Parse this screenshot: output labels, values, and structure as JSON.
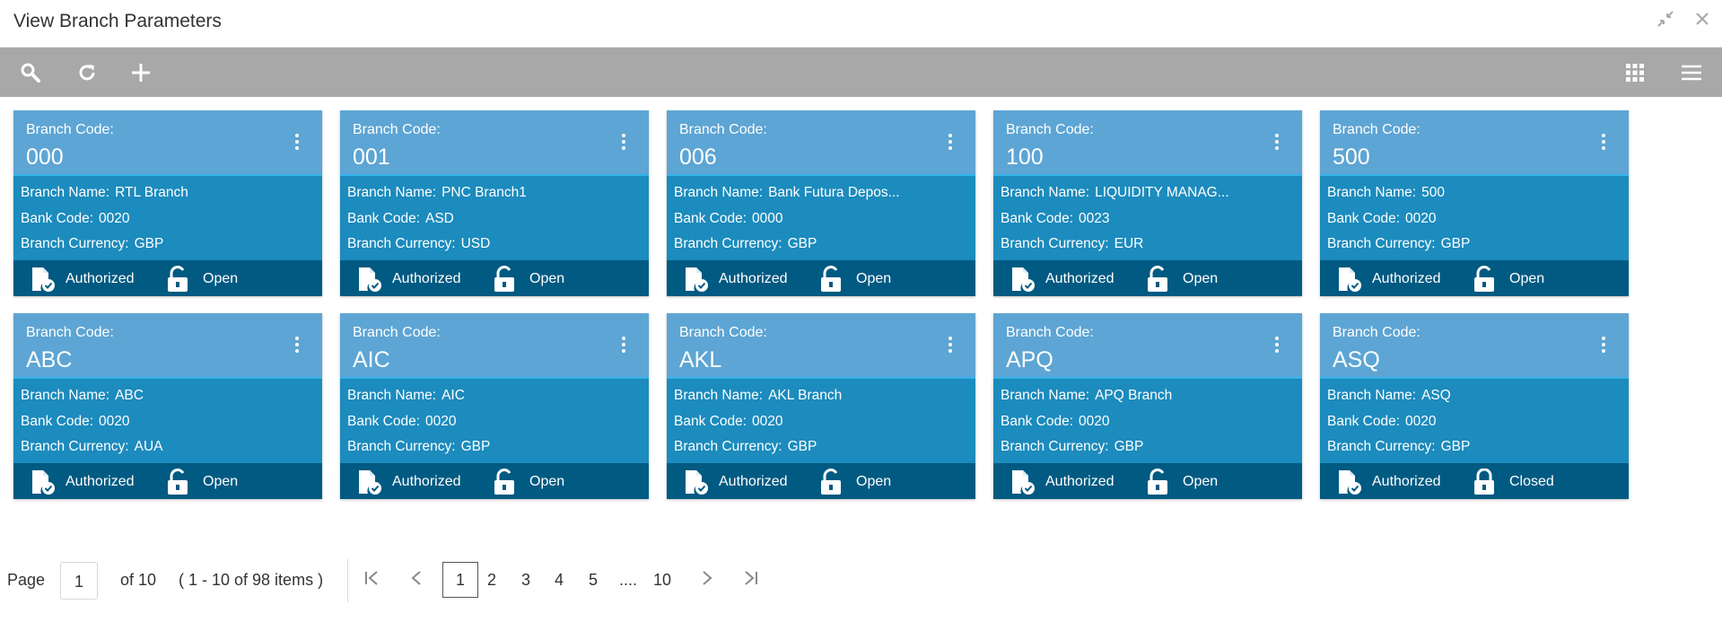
{
  "window": {
    "title": "View Branch Parameters"
  },
  "card_labels": {
    "branch_code": "Branch Code:",
    "branch_name": "Branch Name:",
    "bank_code": "Bank Code:",
    "branch_currency": "Branch Currency:"
  },
  "cards": [
    {
      "code": "000",
      "name": "RTL Branch",
      "bank_code": "0020",
      "currency": "GBP",
      "auth_status": "Authorized",
      "record_status": "Open"
    },
    {
      "code": "001",
      "name": "PNC Branch1",
      "bank_code": "ASD",
      "currency": "USD",
      "auth_status": "Authorized",
      "record_status": "Open"
    },
    {
      "code": "006",
      "name": "Bank Futura Depos...",
      "bank_code": "0000",
      "currency": "GBP",
      "auth_status": "Authorized",
      "record_status": "Open"
    },
    {
      "code": "100",
      "name": "LIQUIDITY MANAG...",
      "bank_code": "0023",
      "currency": "EUR",
      "auth_status": "Authorized",
      "record_status": "Open"
    },
    {
      "code": "500",
      "name": "500",
      "bank_code": "0020",
      "currency": "GBP",
      "auth_status": "Authorized",
      "record_status": "Open"
    },
    {
      "code": "ABC",
      "name": "ABC",
      "bank_code": "0020",
      "currency": "AUA",
      "auth_status": "Authorized",
      "record_status": "Open"
    },
    {
      "code": "AIC",
      "name": "AIC",
      "bank_code": "0020",
      "currency": "GBP",
      "auth_status": "Authorized",
      "record_status": "Open"
    },
    {
      "code": "AKL",
      "name": "AKL Branch",
      "bank_code": "0020",
      "currency": "GBP",
      "auth_status": "Authorized",
      "record_status": "Open"
    },
    {
      "code": "APQ",
      "name": "APQ Branch",
      "bank_code": "0020",
      "currency": "GBP",
      "auth_status": "Authorized",
      "record_status": "Open"
    },
    {
      "code": "ASQ",
      "name": "ASQ",
      "bank_code": "0020",
      "currency": "GBP",
      "auth_status": "Authorized",
      "record_status": "Closed"
    }
  ],
  "pagination": {
    "page_label": "Page",
    "current_page": "1",
    "of_label": "of 10",
    "range_label": "( 1 - 10 of 98 items )",
    "pages": [
      "1",
      "2",
      "3",
      "4",
      "5",
      "....",
      "10"
    ]
  },
  "icons": {
    "toolbar": [
      "search-icon",
      "refresh-icon",
      "add-icon",
      "grid-view-icon",
      "list-view-icon"
    ],
    "window": [
      "minimize-icon",
      "close-icon"
    ],
    "card": [
      "more-options-icon",
      "authorized-icon",
      "lock-open-icon",
      "lock-closed-icon"
    ]
  },
  "colors": {
    "toolbar_bg": "#a8a8a8",
    "card_head": "#5da5d4",
    "card_body": "#1c8bbd",
    "card_foot": "#005a82"
  }
}
